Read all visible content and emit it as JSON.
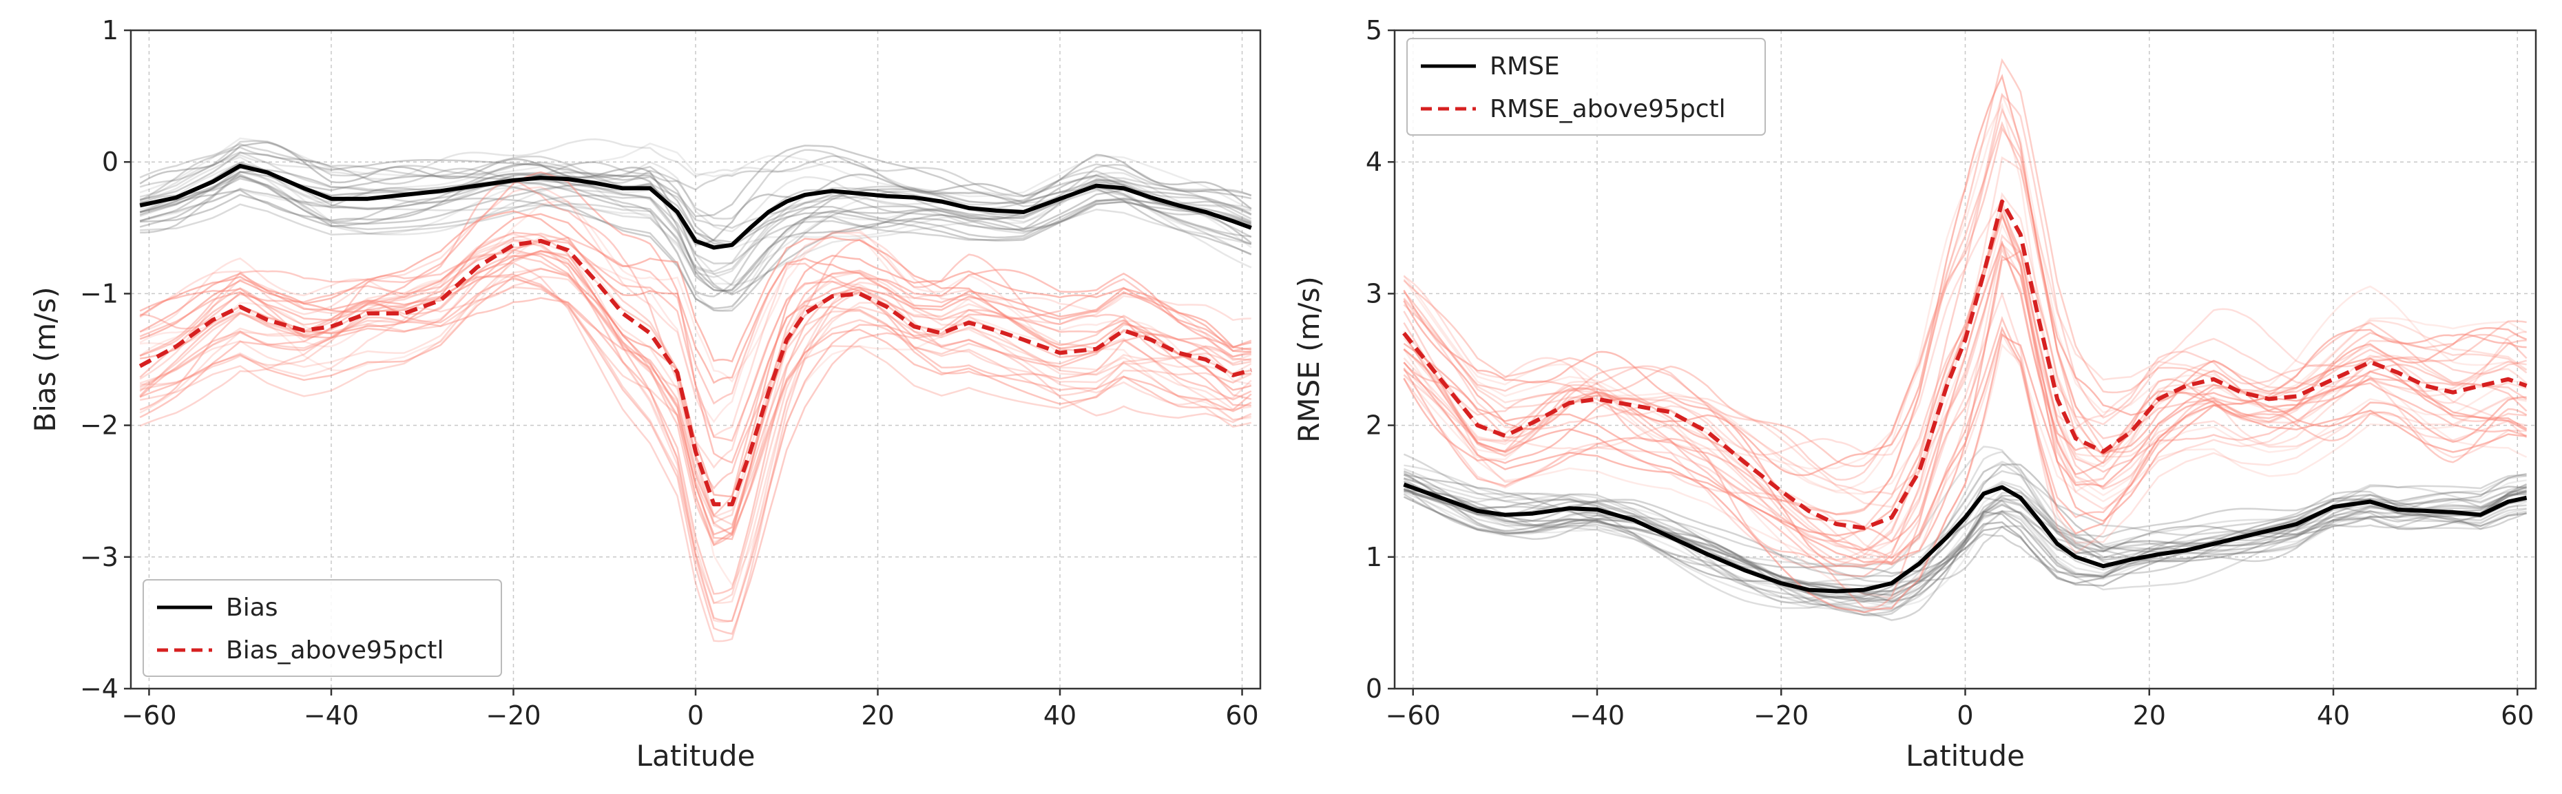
{
  "colors": {
    "mean_line": "#000000",
    "pctl_line": "#d62020",
    "ensemble_gray": "#707070",
    "ensemble_red": "#fa8072",
    "grid": "#c8c8c8",
    "frame": "#333333"
  },
  "chart_data": [
    {
      "type": "line",
      "title": "",
      "xlabel": "Latitude",
      "ylabel": "Bias (m/s)",
      "xlim": [
        -62,
        62
      ],
      "ylim": [
        -4,
        1
      ],
      "xticks": [
        -60,
        -40,
        -20,
        0,
        20,
        40,
        60
      ],
      "yticks": [
        -4,
        -3,
        -2,
        -1,
        0,
        1
      ],
      "tick_labels_x": [
        "−60",
        "−40",
        "−20",
        "0",
        "20",
        "40",
        "60"
      ],
      "tick_labels_y": [
        "−4",
        "−3",
        "−2",
        "−1",
        "0",
        "1"
      ],
      "grid": true,
      "legend": {
        "placement": "lower-left",
        "entries": [
          "Bias",
          "Bias_above95pctl"
        ]
      },
      "x": [
        -61,
        -57,
        -53,
        -50,
        -47,
        -43,
        -40,
        -36,
        -32,
        -28,
        -24,
        -20,
        -17,
        -14,
        -11,
        -8,
        -5,
        -2,
        0,
        2,
        4,
        6,
        8,
        10,
        12,
        15,
        18,
        21,
        24,
        27,
        30,
        33,
        36,
        40,
        44,
        47,
        50,
        53,
        56,
        59,
        61
      ],
      "series": [
        {
          "name": "Bias",
          "style": "solid",
          "values": [
            -0.33,
            -0.27,
            -0.15,
            -0.03,
            -0.08,
            -0.2,
            -0.28,
            -0.28,
            -0.25,
            -0.22,
            -0.18,
            -0.14,
            -0.12,
            -0.13,
            -0.16,
            -0.2,
            -0.2,
            -0.38,
            -0.6,
            -0.65,
            -0.63,
            -0.5,
            -0.38,
            -0.3,
            -0.25,
            -0.22,
            -0.24,
            -0.26,
            -0.27,
            -0.3,
            -0.35,
            -0.37,
            -0.38,
            -0.28,
            -0.18,
            -0.2,
            -0.27,
            -0.33,
            -0.38,
            -0.45,
            -0.5
          ]
        },
        {
          "name": "Bias_above95pctl",
          "style": "dashed",
          "values": [
            -1.55,
            -1.4,
            -1.2,
            -1.1,
            -1.2,
            -1.28,
            -1.25,
            -1.15,
            -1.15,
            -1.05,
            -0.8,
            -0.63,
            -0.6,
            -0.67,
            -0.9,
            -1.15,
            -1.3,
            -1.6,
            -2.2,
            -2.6,
            -2.6,
            -2.2,
            -1.75,
            -1.35,
            -1.15,
            -1.02,
            -1.0,
            -1.1,
            -1.25,
            -1.3,
            -1.22,
            -1.28,
            -1.35,
            -1.45,
            -1.42,
            -1.28,
            -1.35,
            -1.45,
            -1.5,
            -1.62,
            -1.58
          ]
        }
      ]
    },
    {
      "type": "line",
      "title": "",
      "xlabel": "Latitude",
      "ylabel": "RMSE (m/s)",
      "xlim": [
        -62,
        62
      ],
      "ylim": [
        0,
        5
      ],
      "xticks": [
        -60,
        -40,
        -20,
        0,
        20,
        40,
        60
      ],
      "yticks": [
        0,
        1,
        2,
        3,
        4,
        5
      ],
      "tick_labels_x": [
        "−60",
        "−40",
        "−20",
        "0",
        "20",
        "40",
        "60"
      ],
      "tick_labels_y": [
        "0",
        "1",
        "2",
        "3",
        "4",
        "5"
      ],
      "grid": true,
      "legend": {
        "placement": "upper-left",
        "entries": [
          "RMSE",
          "RMSE_above95pctl"
        ]
      },
      "x": [
        -61,
        -57,
        -53,
        -50,
        -47,
        -43,
        -40,
        -36,
        -32,
        -28,
        -24,
        -20,
        -17,
        -14,
        -11,
        -8,
        -5,
        -2,
        0,
        2,
        4,
        6,
        8,
        10,
        12,
        15,
        18,
        21,
        24,
        27,
        30,
        33,
        36,
        40,
        44,
        47,
        50,
        53,
        56,
        59,
        61
      ],
      "series": [
        {
          "name": "RMSE",
          "style": "solid",
          "values": [
            1.55,
            1.45,
            1.35,
            1.32,
            1.33,
            1.37,
            1.36,
            1.28,
            1.15,
            1.02,
            0.9,
            0.8,
            0.75,
            0.74,
            0.75,
            0.8,
            0.95,
            1.15,
            1.3,
            1.48,
            1.53,
            1.45,
            1.28,
            1.1,
            1.0,
            0.93,
            0.98,
            1.02,
            1.05,
            1.1,
            1.15,
            1.2,
            1.25,
            1.38,
            1.42,
            1.36,
            1.35,
            1.34,
            1.32,
            1.42,
            1.45
          ]
        },
        {
          "name": "RMSE_above95pctl",
          "style": "dashed",
          "values": [
            2.7,
            2.35,
            2.0,
            1.92,
            2.02,
            2.17,
            2.2,
            2.15,
            2.1,
            1.95,
            1.72,
            1.5,
            1.35,
            1.25,
            1.22,
            1.3,
            1.65,
            2.3,
            2.65,
            3.15,
            3.7,
            3.45,
            2.8,
            2.2,
            1.9,
            1.8,
            1.95,
            2.2,
            2.3,
            2.35,
            2.25,
            2.2,
            2.22,
            2.35,
            2.48,
            2.4,
            2.3,
            2.25,
            2.3,
            2.35,
            2.3
          ]
        }
      ]
    }
  ]
}
